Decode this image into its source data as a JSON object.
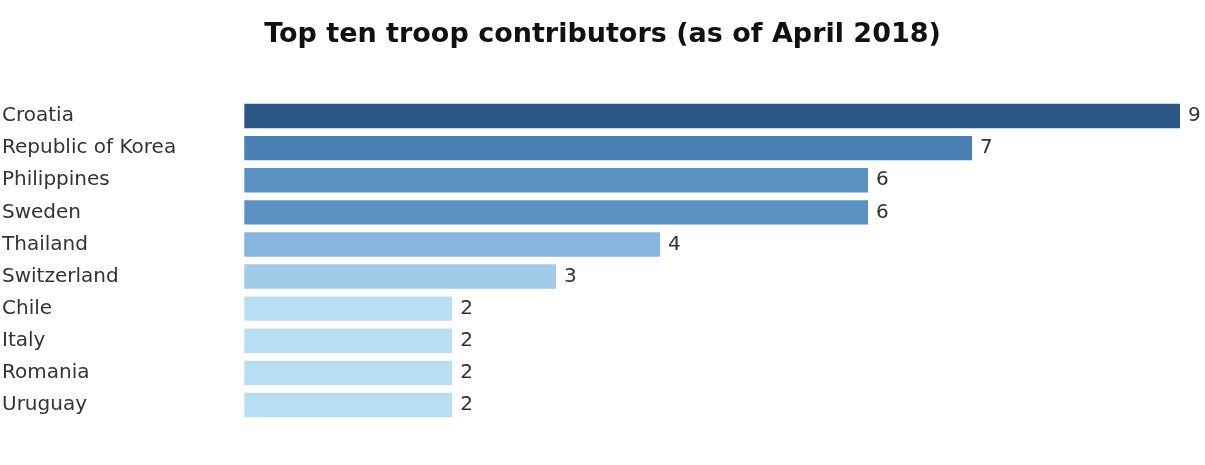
{
  "chart_data": {
    "type": "bar",
    "orientation": "horizontal",
    "title": "Top ten troop contributors (as of April 2018)",
    "categories": [
      "Croatia",
      "Republic of Korea",
      "Philippines",
      "Sweden",
      "Thailand",
      "Switzerland",
      "Chile",
      "Italy",
      "Romania",
      "Uruguay"
    ],
    "values": [
      9,
      7,
      6,
      6,
      4,
      3,
      2,
      2,
      2,
      2
    ],
    "colors": [
      "#2a5783",
      "#4a7fb3",
      "#5b90c2",
      "#5b90c2",
      "#86b6dd",
      "#a2cbea",
      "#b8def1",
      "#b8def1",
      "#b8def1",
      "#b8def1"
    ],
    "xlim": [
      0,
      9
    ],
    "data_labels": true,
    "tick_labels": "y",
    "grid": false,
    "legend": false
  }
}
